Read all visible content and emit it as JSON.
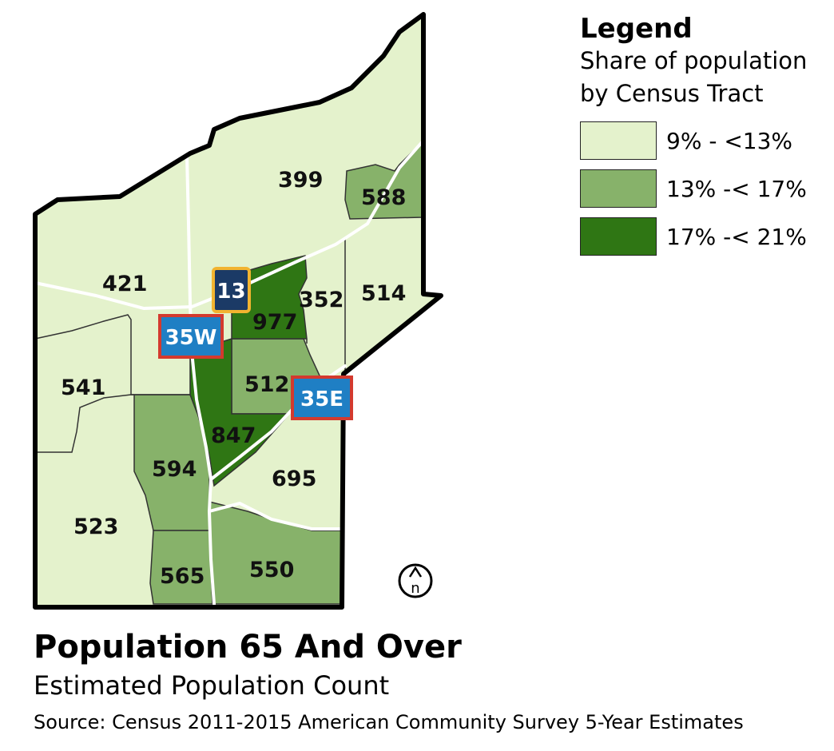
{
  "title": "Population 65 And Over",
  "subtitle": "Estimated Population Count",
  "source": "Source: Census 2011-2015 American Community Survey 5-Year Estimates",
  "legend": {
    "title": "Legend",
    "subtitle": "Share of population by Census Tract",
    "items": [
      {
        "label": "9% - <13%",
        "color": "#e4f2cc"
      },
      {
        "label": "13% -< 17%",
        "color": "#87b26a"
      },
      {
        "label": "17% -< 21%",
        "color": "#2f7614"
      }
    ]
  },
  "tracts": [
    {
      "id": "399",
      "class": 0
    },
    {
      "id": "588",
      "class": 1
    },
    {
      "id": "421",
      "class": 0
    },
    {
      "id": "352",
      "class": 0
    },
    {
      "id": "514",
      "class": 0
    },
    {
      "id": "977",
      "class": 2
    },
    {
      "id": "541",
      "class": 0
    },
    {
      "id": "512",
      "class": 1
    },
    {
      "id": "847",
      "class": 2
    },
    {
      "id": "594",
      "class": 1
    },
    {
      "id": "695",
      "class": 0
    },
    {
      "id": "523",
      "class": 0
    },
    {
      "id": "565",
      "class": 1
    },
    {
      "id": "550",
      "class": 1
    }
  ],
  "shields": [
    {
      "label": "13",
      "fill": "#1b3a66",
      "border": "#f2b430"
    },
    {
      "label": "35W",
      "fill": "#1f7fc4",
      "border": "#d33a2e"
    },
    {
      "label": "35E",
      "fill": "#1f7fc4",
      "border": "#d33a2e"
    }
  ],
  "north_arrow_label": "n"
}
